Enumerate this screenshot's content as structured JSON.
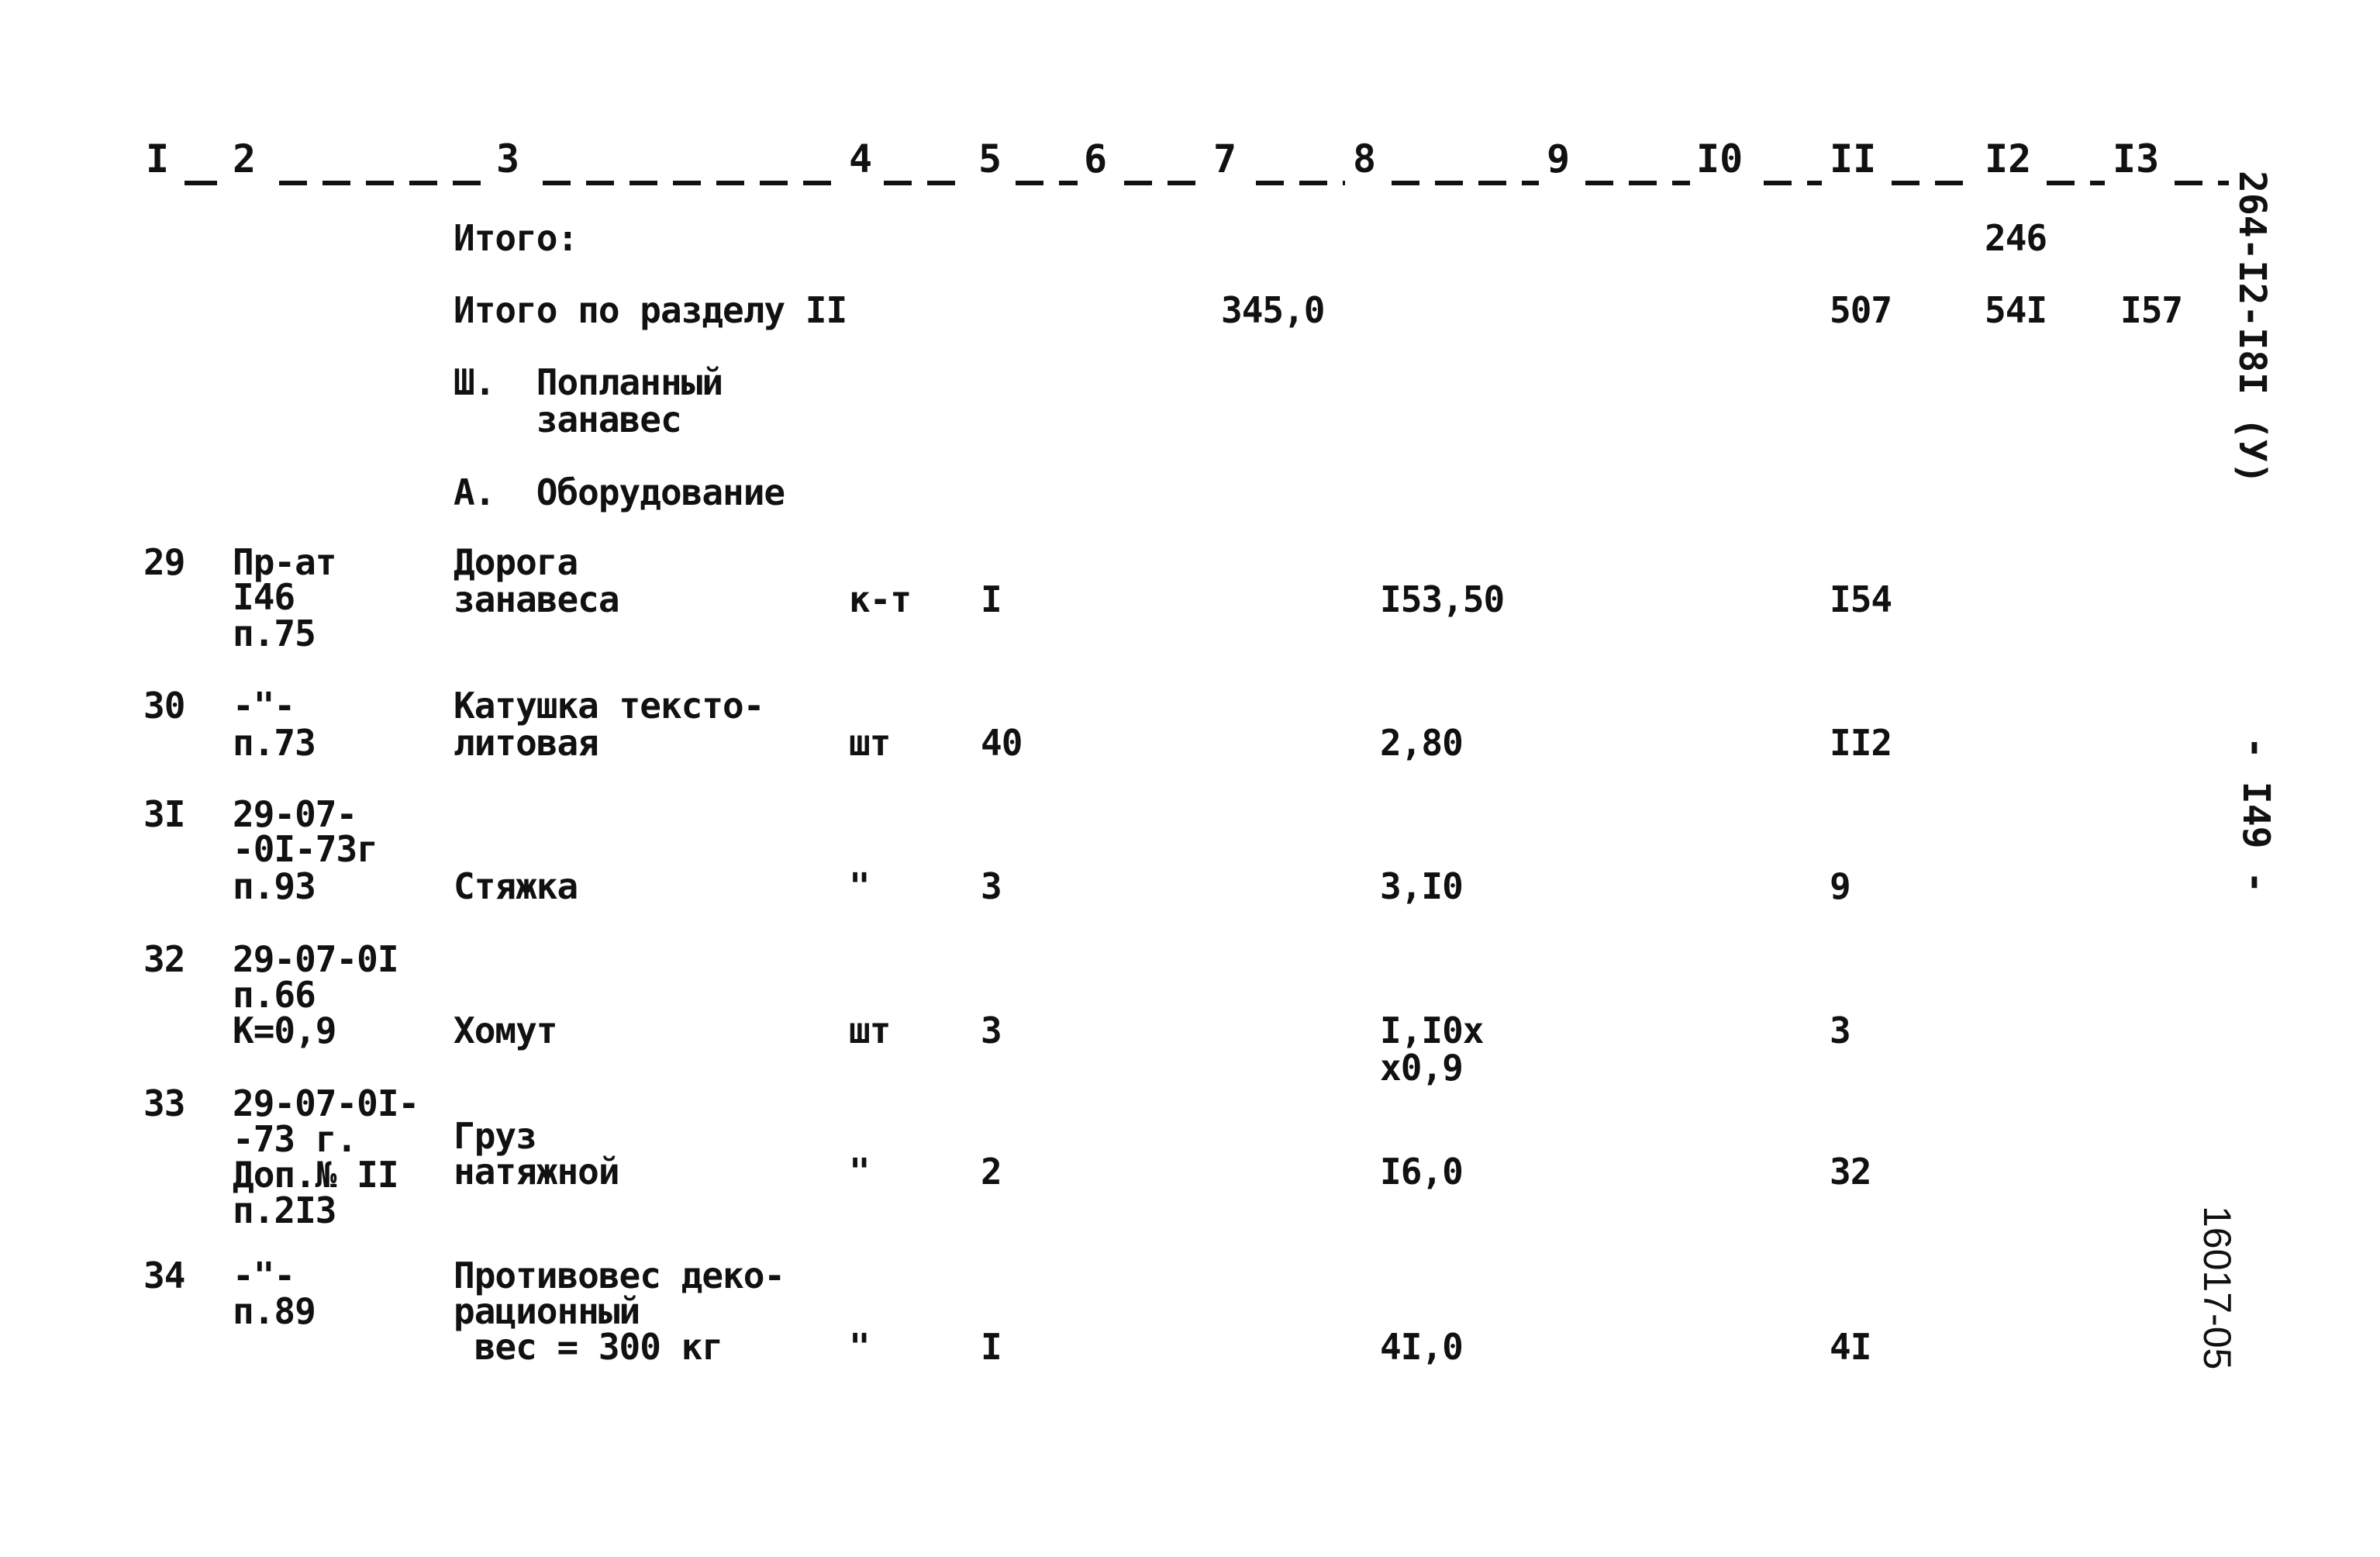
{
  "header": {
    "columns": [
      "I",
      "2",
      "3",
      "4",
      "5",
      "6",
      "7",
      "8",
      "9",
      "I0",
      "II",
      "I2",
      "I3"
    ]
  },
  "summary": {
    "itogo_label": "Итого:",
    "itogo_c12": "246",
    "section_total_label": "Итого по разделу II",
    "section_total_c7": "345,0",
    "section_total_c11": "507",
    "section_total_c12": "54I",
    "section_total_c13": "I57"
  },
  "section": {
    "title_line1": "Ш.  Попланный",
    "title_line2": "    занавес",
    "subsection": "А.  Оборудование"
  },
  "rows": [
    {
      "num": "29",
      "code": [
        "Пр-ат",
        "I46",
        "п.75"
      ],
      "name": [
        "Дорога",
        "занавеса"
      ],
      "unit": "к-т",
      "qty": "I",
      "price": [
        "I53,50"
      ],
      "total": "I54"
    },
    {
      "num": "30",
      "code": [
        "-\"-",
        "п.73"
      ],
      "name": [
        "Катушка тексто-",
        "литовая"
      ],
      "unit": "шт",
      "qty": "40",
      "price": [
        "2,80"
      ],
      "total": "II2"
    },
    {
      "num": "3I",
      "code": [
        "29-07-",
        "-0I-73г",
        "п.93"
      ],
      "name": [
        "Стяжка"
      ],
      "unit": "\"",
      "qty": "3",
      "price": [
        "3,I0"
      ],
      "total": "9"
    },
    {
      "num": "32",
      "code": [
        "29-07-0I",
        "п.66",
        "К=0,9"
      ],
      "name": [
        "Хомут"
      ],
      "unit": "шт",
      "qty": "3",
      "price": [
        "I,I0x",
        "x0,9"
      ],
      "total": "3"
    },
    {
      "num": "33",
      "code": [
        "29-07-0I-",
        "-73 г.",
        "Доп.№ II",
        "п.2I3"
      ],
      "name": [
        "Груз",
        "натяжной"
      ],
      "unit": "\"",
      "qty": "2",
      "price": [
        "I6,0"
      ],
      "total": "32"
    },
    {
      "num": "34",
      "code": [
        "-\"-",
        "п.89"
      ],
      "name": [
        "Противовес деко-",
        "рационный",
        " вес = 300 кг"
      ],
      "unit": "\"",
      "qty": "I",
      "price": [
        "4I,0"
      ],
      "total": "4I"
    }
  ],
  "margin": {
    "doc_code": "264-I2-I8I (У)",
    "page": "- I49 -",
    "archive": "16017-05"
  }
}
